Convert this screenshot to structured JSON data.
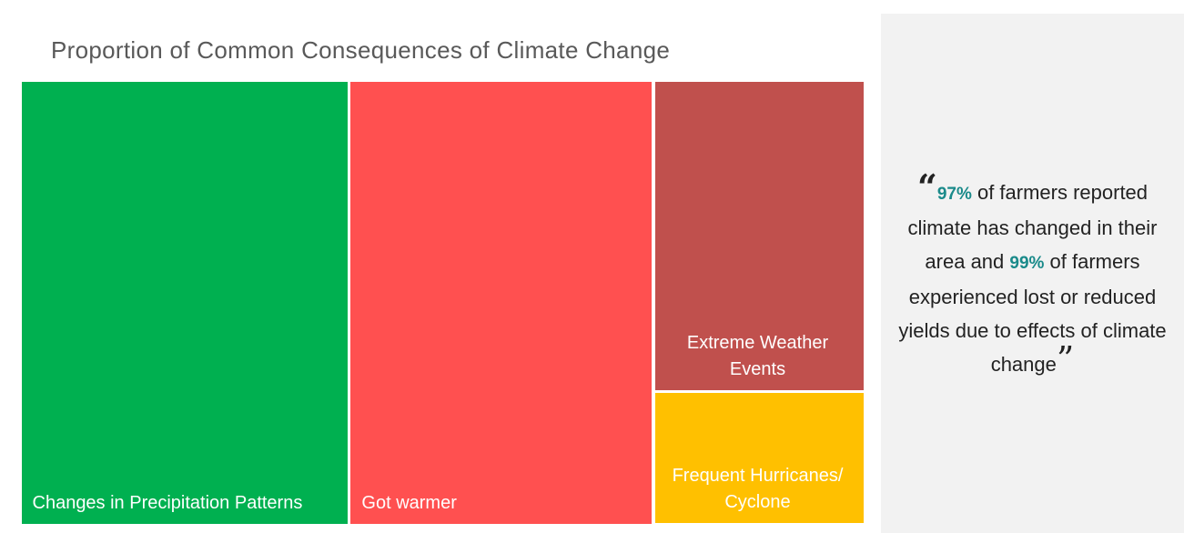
{
  "chart_data": {
    "type": "treemap",
    "title": "Proportion of Common Consequences of Climate Change",
    "categories": [
      "Changes in Precipitation Patterns",
      "Got warmer",
      "Extreme Weather Events",
      "Frequent Hurricanes/ Cyclone"
    ],
    "values": [
      39,
      36,
      17.5,
      7.5
    ],
    "colors": [
      "#00b050",
      "#ff5050",
      "#c0504d",
      "#ffc000"
    ]
  },
  "quote": {
    "open_mark": "“",
    "highlight_1": "97%",
    "text_1": " of farmers reported climate has changed in their area and ",
    "highlight_2": "99%",
    "text_2": " of farmers experienced lost or reduced yields due to effects of climate change",
    "close_mark": "”"
  }
}
